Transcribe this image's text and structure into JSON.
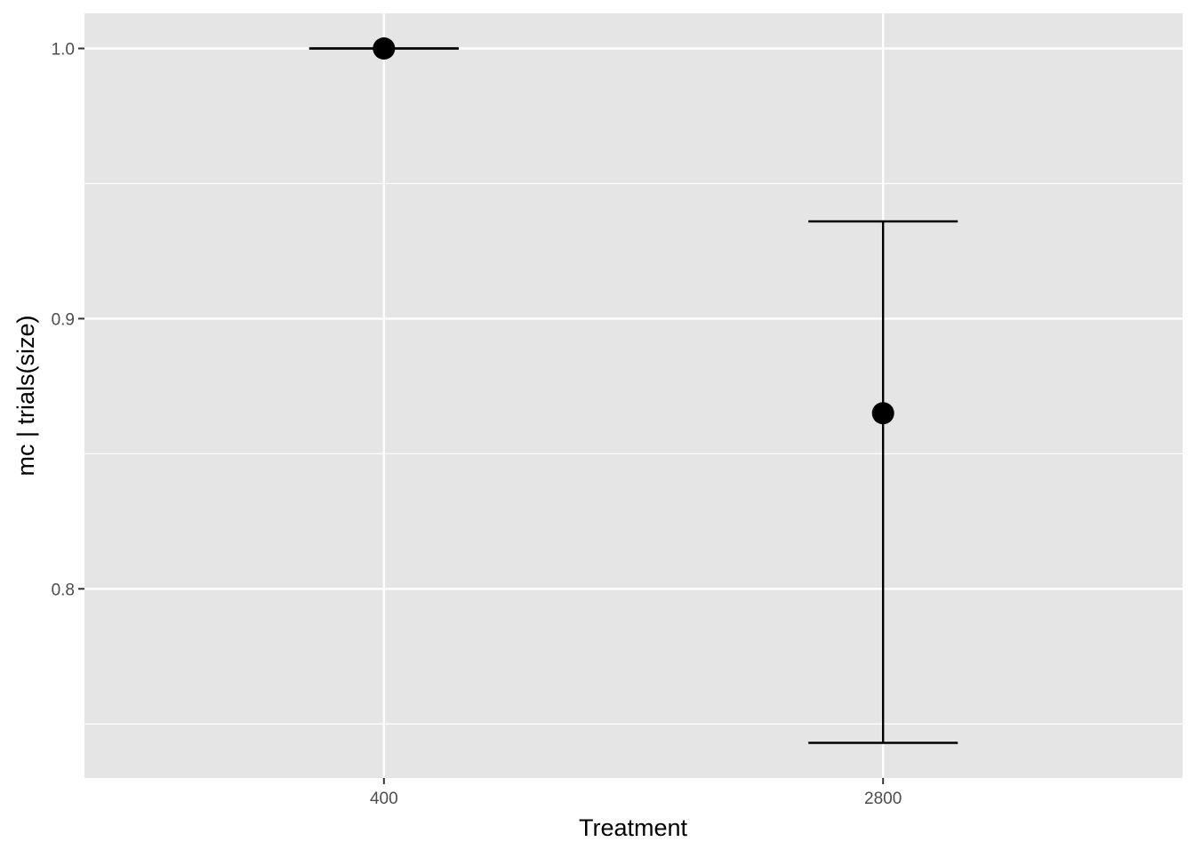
{
  "chart_data": {
    "type": "scatter",
    "title": "",
    "xlabel": "Treatment",
    "ylabel": "mc | trials(size)",
    "categories": [
      "400",
      "2800"
    ],
    "series": [
      {
        "points": [
          {
            "x": "400",
            "y": 1.0,
            "lower": 1.0,
            "upper": 1.0
          },
          {
            "x": "2800",
            "y": 0.865,
            "lower": 0.743,
            "upper": 0.936
          }
        ]
      }
    ],
    "ylim": [
      0.73,
      1.013
    ],
    "y_ticks": [
      0.8,
      0.9,
      1.0
    ],
    "y_tick_labels": [
      "0.8",
      "0.9",
      "1.0"
    ],
    "grid": true,
    "legend": "none",
    "colors": {
      "panel_background": "#e5e5e5",
      "grid_line": "#ffffff",
      "mark": "#000000",
      "tick_text": "#4d4d4d",
      "axis_title": "#000000"
    }
  }
}
